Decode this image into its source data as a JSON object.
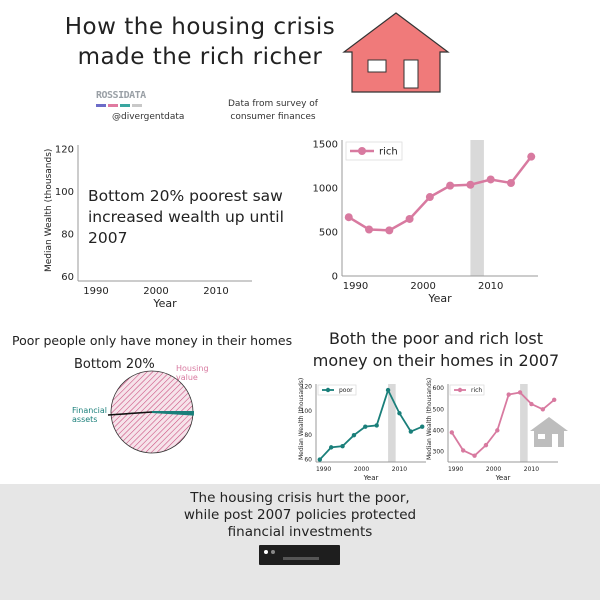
{
  "header": {
    "title_line1": "How the housing crisis",
    "title_line2": "made the rich richer",
    "logo_text": "ROSSIDATA",
    "handle": "@divergentdata",
    "source_line1": "Data from survey of",
    "source_line2": "consumer finances"
  },
  "colors": {
    "poor": "#1a7f7a",
    "rich": "#d87aa0",
    "house": "#f07a7a",
    "crisis_band": "#d9d9d9",
    "footer_bg": "#e6e6e6"
  },
  "left_top": {
    "annotation": "Bottom 20% poorest saw increased wealth up until 2007"
  },
  "sections": {
    "left_heading": "Poor people only have money in their homes",
    "right_heading_line1": "Both the poor and rich lost",
    "right_heading_line2": "money on their homes in 2007",
    "pie_title": "Bottom 20%"
  },
  "footer": {
    "line1": "The housing crisis hurt the poor,",
    "line2": "while post 2007 policies protected",
    "line3": "financial investments"
  },
  "chart_data": [
    {
      "id": "top-left",
      "type": "line",
      "series": [],
      "xlabel": "Year",
      "ylabel": "Median Wealth (thousands)",
      "xlim": [
        1987,
        2016
      ],
      "ylim": [
        58,
        122
      ],
      "xticks": [
        1990,
        2000,
        2010
      ],
      "yticks": [
        60,
        80,
        100,
        120
      ],
      "grid": false
    },
    {
      "id": "top-right",
      "type": "line",
      "xlabel": "Year",
      "ylabel": "",
      "xlim": [
        1988,
        2017
      ],
      "ylim": [
        0,
        1550
      ],
      "xticks": [
        1990,
        2000,
        2010
      ],
      "yticks": [
        0,
        500,
        1000,
        1500
      ],
      "legend": "top-left",
      "shade": [
        2007,
        2009
      ],
      "series": [
        {
          "name": "rich",
          "x": [
            1989,
            1992,
            1995,
            1998,
            2001,
            2004,
            2007,
            2010,
            2013,
            2016
          ],
          "values": [
            670,
            530,
            520,
            650,
            900,
            1030,
            1040,
            1100,
            1060,
            1360
          ]
        }
      ],
      "grid": false
    },
    {
      "id": "pie",
      "type": "pie",
      "title": "Bottom 20%",
      "categories": [
        "Housing value",
        "Financial assets"
      ],
      "values": [
        99,
        1
      ]
    },
    {
      "id": "bottom-poor",
      "type": "line",
      "xlabel": "Year",
      "ylabel": "Median Wealth (thousands)",
      "xlim": [
        1988,
        2017
      ],
      "ylim": [
        58,
        122
      ],
      "xticks": [
        1990,
        2000,
        2010
      ],
      "yticks": [
        60,
        80,
        100,
        120
      ],
      "legend": "top-left",
      "shade": [
        2007,
        2009
      ],
      "series": [
        {
          "name": "poor",
          "x": [
            1989,
            1992,
            1995,
            1998,
            2001,
            2004,
            2007,
            2010,
            2013,
            2016
          ],
          "values": [
            60,
            70,
            71,
            80,
            87,
            88,
            117,
            98,
            83,
            87
          ]
        }
      ],
      "grid": false
    },
    {
      "id": "bottom-rich",
      "type": "line",
      "xlabel": "Year",
      "ylabel": "Median Wealth (thousands)",
      "xlim": [
        1988,
        2017
      ],
      "ylim": [
        250,
        620
      ],
      "xticks": [
        1990,
        2000,
        2010
      ],
      "yticks": [
        300,
        400,
        500,
        600
      ],
      "legend": "top-left",
      "shade": [
        2007,
        2009
      ],
      "series": [
        {
          "name": "rich",
          "x": [
            1989,
            1992,
            1995,
            1998,
            2001,
            2004,
            2007,
            2010,
            2013,
            2016
          ],
          "values": [
            390,
            305,
            280,
            330,
            400,
            570,
            580,
            525,
            500,
            545
          ]
        }
      ],
      "grid": false
    }
  ]
}
